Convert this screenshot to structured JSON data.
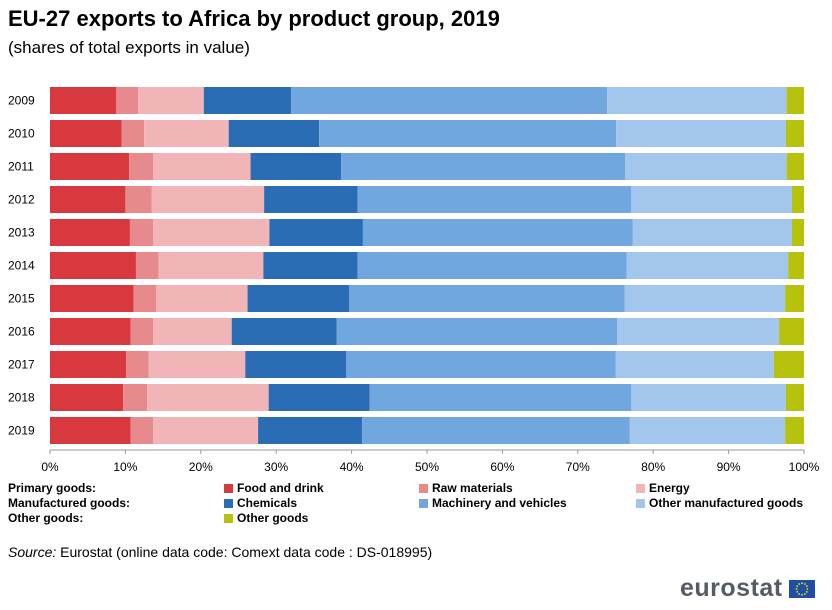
{
  "header": {
    "title": "EU-27 exports to Africa by product group, 2019",
    "subtitle": "(shares of total exports in value)"
  },
  "legend": {
    "rows": [
      {
        "group": "Primary goods:",
        "items": [
          {
            "label": "Food and drink",
            "color": "#d8393f"
          },
          {
            "label": "Raw materials",
            "color": "#e78a8e"
          },
          {
            "label": "Energy",
            "color": "#f1b5b7"
          }
        ]
      },
      {
        "group": "Manufactured goods:",
        "items": [
          {
            "label": "Chemicals",
            "color": "#2a6db5"
          },
          {
            "label": "Machinery and vehicles",
            "color": "#71a7df"
          },
          {
            "label": "Other manufactured goods",
            "color": "#a2c6ec"
          }
        ]
      },
      {
        "group": "Other goods:",
        "items": [
          {
            "label": "Other goods",
            "color": "#b6c20b"
          }
        ]
      }
    ]
  },
  "chart_data": {
    "type": "bar",
    "orientation": "horizontal",
    "stacked": true,
    "categories": [
      "2009",
      "2010",
      "2011",
      "2012",
      "2013",
      "2014",
      "2015",
      "2016",
      "2017",
      "2018",
      "2019"
    ],
    "xlim": [
      0,
      100
    ],
    "x_ticks": [
      "0%",
      "10%",
      "20%",
      "30%",
      "40%",
      "50%",
      "60%",
      "70%",
      "80%",
      "90%",
      "100%"
    ],
    "grid": false,
    "legend_position": "bottom",
    "series": [
      {
        "name": "Food and drink",
        "color": "#d8393f",
        "values": [
          8.8,
          9.5,
          10.5,
          10.0,
          10.6,
          11.4,
          11.1,
          10.7,
          10.1,
          9.7,
          10.7
        ]
      },
      {
        "name": "Raw materials",
        "color": "#e78a8e",
        "values": [
          2.9,
          3.0,
          3.2,
          3.5,
          3.1,
          3.0,
          3.0,
          3.0,
          3.0,
          3.2,
          3.0
        ]
      },
      {
        "name": "Energy",
        "color": "#f1b5b7",
        "values": [
          8.7,
          11.2,
          12.9,
          14.9,
          15.4,
          13.9,
          12.1,
          10.4,
          12.8,
          16.1,
          13.9
        ]
      },
      {
        "name": "Chemicals",
        "color": "#2a6db5",
        "values": [
          11.6,
          12.0,
          12.0,
          12.4,
          12.4,
          12.5,
          13.5,
          13.9,
          13.4,
          13.4,
          13.8
        ]
      },
      {
        "name": "Machinery and vehicles",
        "color": "#71a7df",
        "values": [
          41.9,
          39.4,
          37.7,
          36.3,
          35.8,
          35.7,
          36.5,
          37.2,
          35.7,
          34.7,
          35.5
        ]
      },
      {
        "name": "Other manufactured goods",
        "color": "#a2c6ec",
        "values": [
          23.8,
          22.5,
          21.4,
          21.3,
          21.1,
          21.4,
          21.3,
          21.5,
          21.0,
          20.5,
          20.6
        ]
      },
      {
        "name": "Other goods",
        "color": "#b6c20b",
        "values": [
          2.3,
          2.4,
          2.3,
          1.6,
          1.6,
          2.1,
          2.5,
          3.3,
          4.0,
          2.4,
          2.5
        ]
      }
    ]
  },
  "source": {
    "label": "Source:",
    "text": "Eurostat (online data code: Comext data code : DS-018995)"
  },
  "logo": {
    "text": "eurostat"
  }
}
